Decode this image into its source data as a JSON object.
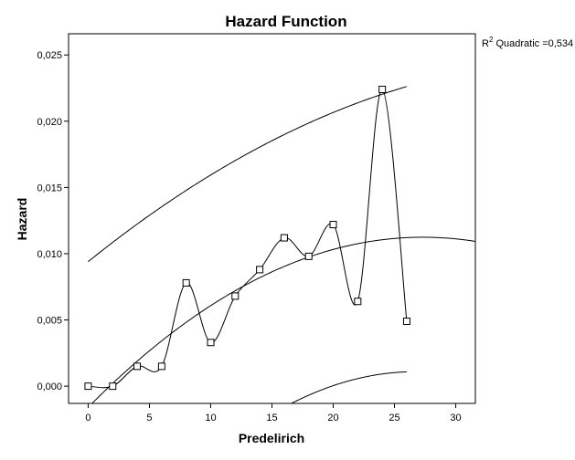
{
  "chart_data": {
    "type": "scatter",
    "title": "Hazard Function",
    "xlabel": "Predelirich",
    "ylabel": "Hazard",
    "xlim": [
      -1.6,
      31.6
    ],
    "ylim": [
      -0.0013,
      0.0266
    ],
    "xticks": [
      "0",
      "5",
      "10",
      "15",
      "20",
      "25",
      "30"
    ],
    "yticks": [
      "0,000",
      "0,005",
      "0,010",
      "0,015",
      "0,020",
      "0,025"
    ],
    "grid": false,
    "legend": {
      "prefix": "R",
      "sup": "2",
      "rest": " Quadratic =0,534",
      "position": "top-right"
    },
    "x": [
      0,
      2,
      4,
      6,
      8,
      10,
      12,
      14,
      16,
      18,
      20,
      22,
      24,
      26
    ],
    "y": [
      0.0,
      0.0,
      0.0015,
      0.0015,
      0.0078,
      0.0033,
      0.0068,
      0.0088,
      0.0112,
      0.0098,
      0.0122,
      0.0064,
      0.0224,
      0.0049
    ],
    "fit": {
      "type": "quadratic",
      "a": -0.0016,
      "b": 0.00094,
      "c": -1.72e-05
    },
    "band_upper": {
      "a": 0.0094,
      "b": 0.000745,
      "c": -9.1e-06,
      "xrange": [
        0,
        26
      ]
    },
    "band_lower": {
      "a": -0.0156,
      "b": 0.00125,
      "c": -2.34e-05,
      "xrange": [
        14.85,
        26
      ]
    },
    "colors": {
      "line": "#000000",
      "marker_fill": "#ffffff",
      "frame": "#000000",
      "background": "#ffffff"
    }
  }
}
